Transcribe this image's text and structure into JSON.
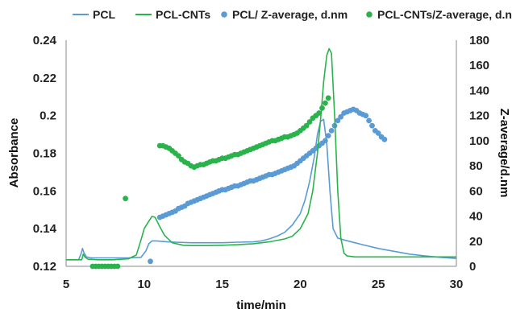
{
  "chart_data": {
    "type": "line",
    "xlabel": "time/min",
    "ylabel_left": "Absorbance",
    "ylabel_right": "Z-average/d.nm",
    "xlim": [
      5,
      30
    ],
    "ylim_left": [
      0.12,
      0.24
    ],
    "ylim_right": [
      0,
      180
    ],
    "x_ticks": [
      "5",
      "10",
      "15",
      "20",
      "25",
      "30"
    ],
    "y_left_ticks": [
      "0.12",
      "0.14",
      "0.16",
      "0.18",
      "0.2",
      "0.22",
      "0.24"
    ],
    "y_right_ticks": [
      "0",
      "20",
      "40",
      "60",
      "80",
      "100",
      "120",
      "140",
      "160",
      "180"
    ],
    "legend_position": "top",
    "grid": false,
    "series": [
      {
        "name": "PCL",
        "kind": "line",
        "axis": "left",
        "color": "#5b9bd5",
        "x": [
          5,
          5.8,
          5.95,
          6.05,
          6.15,
          6.3,
          6.6,
          7,
          8,
          9,
          9.8,
          10.1,
          10.3,
          10.5,
          10.8,
          11.5,
          12,
          13,
          14,
          15,
          16,
          17,
          17.5,
          18,
          18.5,
          19,
          19.5,
          20,
          20.3,
          20.6,
          20.9,
          21.1,
          21.3,
          21.5,
          21.7,
          21.9,
          22.1,
          22.4,
          22.8,
          23.5,
          24,
          25,
          26,
          27,
          28,
          29,
          30
        ],
        "y": [
          0.1235,
          0.1235,
          0.1265,
          0.1295,
          0.127,
          0.125,
          0.1245,
          0.1245,
          0.1245,
          0.1245,
          0.1248,
          0.128,
          0.132,
          0.1335,
          0.1335,
          0.133,
          0.1328,
          0.1325,
          0.1325,
          0.1325,
          0.1328,
          0.133,
          0.1335,
          0.1345,
          0.136,
          0.138,
          0.142,
          0.148,
          0.155,
          0.165,
          0.178,
          0.19,
          0.197,
          0.198,
          0.185,
          0.16,
          0.14,
          0.135,
          0.134,
          0.1325,
          0.1315,
          0.1295,
          0.128,
          0.1265,
          0.1255,
          0.1248,
          0.1242
        ]
      },
      {
        "name": "PCL-CNTs",
        "kind": "line",
        "axis": "left",
        "color": "#2bb34b",
        "x": [
          5,
          6,
          6.1,
          6.2,
          6.4,
          7,
          8,
          9,
          9.5,
          9.8,
          10.0,
          10.3,
          10.5,
          10.7,
          11,
          11.3,
          11.8,
          12.5,
          13,
          14,
          15,
          16,
          17,
          18,
          19,
          19.5,
          20,
          20.5,
          20.8,
          21.1,
          21.3,
          21.5,
          21.7,
          21.85,
          22.0,
          22.2,
          22.4,
          22.6,
          22.8,
          23,
          23.5,
          24,
          25,
          26,
          27,
          28,
          29,
          30
        ],
        "y": [
          0.1235,
          0.1235,
          0.1265,
          0.125,
          0.1238,
          0.1235,
          0.1235,
          0.124,
          0.126,
          0.134,
          0.14,
          0.144,
          0.1465,
          0.146,
          0.141,
          0.1365,
          0.1325,
          0.1312,
          0.131,
          0.131,
          0.1312,
          0.1315,
          0.132,
          0.133,
          0.1345,
          0.136,
          0.14,
          0.148,
          0.16,
          0.18,
          0.198,
          0.218,
          0.232,
          0.2355,
          0.233,
          0.2,
          0.16,
          0.135,
          0.127,
          0.1255,
          0.125,
          0.125,
          0.125,
          0.125,
          0.125,
          0.125,
          0.125,
          0.125
        ]
      },
      {
        "name": "PCL/ Z-average, d.nm",
        "kind": "scatter",
        "axis": "right",
        "color": "#5b9bd5",
        "x": [
          10.4,
          11.0,
          11.2,
          11.4,
          11.6,
          11.8,
          12.0,
          12.2,
          12.4,
          12.6,
          12.8,
          13.0,
          13.2,
          13.4,
          13.6,
          13.8,
          14.0,
          14.2,
          14.4,
          14.6,
          14.8,
          15.0,
          15.2,
          15.4,
          15.6,
          15.8,
          16.0,
          16.2,
          16.4,
          16.6,
          16.8,
          17.0,
          17.2,
          17.4,
          17.6,
          17.8,
          18.0,
          18.2,
          18.4,
          18.6,
          18.8,
          19.0,
          19.2,
          19.4,
          19.6,
          19.8,
          20.0,
          20.2,
          20.4,
          20.6,
          20.8,
          21.0,
          21.2,
          21.4,
          21.6,
          21.8,
          22.0,
          22.2,
          22.4,
          22.6,
          22.8,
          23.0,
          23.2,
          23.4,
          23.6,
          23.8,
          24.0,
          24.2,
          24.4,
          24.6,
          24.8,
          25.0,
          25.2,
          25.4
        ],
        "y": [
          4,
          39,
          40,
          41,
          42,
          43,
          44,
          46,
          47,
          48,
          50,
          51,
          52,
          53,
          54,
          55,
          56,
          57,
          58,
          59,
          60,
          61,
          61,
          62,
          63,
          64,
          64,
          65,
          66,
          67,
          68,
          68,
          69,
          70,
          71,
          72,
          73,
          73,
          74,
          75,
          76,
          77,
          78,
          79,
          80,
          82,
          84,
          86,
          88,
          90,
          92,
          94,
          96,
          98,
          100,
          104,
          108,
          112,
          116,
          119,
          122,
          123,
          124,
          125,
          124,
          122,
          121,
          120,
          116,
          112,
          108,
          106,
          103,
          101
        ]
      },
      {
        "name": "PCL-CNTs/Z-average, d.nm",
        "kind": "scatter",
        "axis": "right",
        "color": "#2bb34b",
        "x": [
          6.7,
          6.9,
          7.1,
          7.3,
          7.5,
          7.7,
          7.9,
          8.1,
          8.3,
          8.8,
          11.0,
          11.2,
          11.4,
          11.6,
          11.8,
          12.0,
          12.2,
          12.4,
          12.6,
          12.8,
          13.0,
          13.2,
          13.4,
          13.6,
          13.8,
          14.0,
          14.2,
          14.4,
          14.6,
          14.8,
          15.0,
          15.2,
          15.4,
          15.6,
          15.8,
          16.0,
          16.2,
          16.4,
          16.6,
          16.8,
          17.0,
          17.2,
          17.4,
          17.6,
          17.8,
          18.0,
          18.2,
          18.4,
          18.6,
          18.8,
          19.0,
          19.2,
          19.4,
          19.6,
          19.8,
          20.0,
          20.2,
          20.4,
          20.6,
          20.8,
          21.0,
          21.2,
          21.4,
          21.6,
          21.8
        ],
        "y": [
          0,
          0,
          0,
          0,
          0,
          0,
          0,
          0,
          0,
          54,
          96,
          96,
          95,
          94,
          92,
          90,
          88,
          85,
          83,
          82,
          80,
          79,
          80,
          81,
          81,
          82,
          83,
          84,
          84,
          85,
          86,
          86,
          87,
          88,
          89,
          89,
          90,
          91,
          92,
          93,
          94,
          95,
          96,
          97,
          98,
          99,
          100,
          100,
          101,
          102,
          103,
          103,
          104,
          105,
          106,
          108,
          110,
          112,
          115,
          118,
          120,
          122,
          126,
          130,
          134
        ]
      }
    ]
  }
}
